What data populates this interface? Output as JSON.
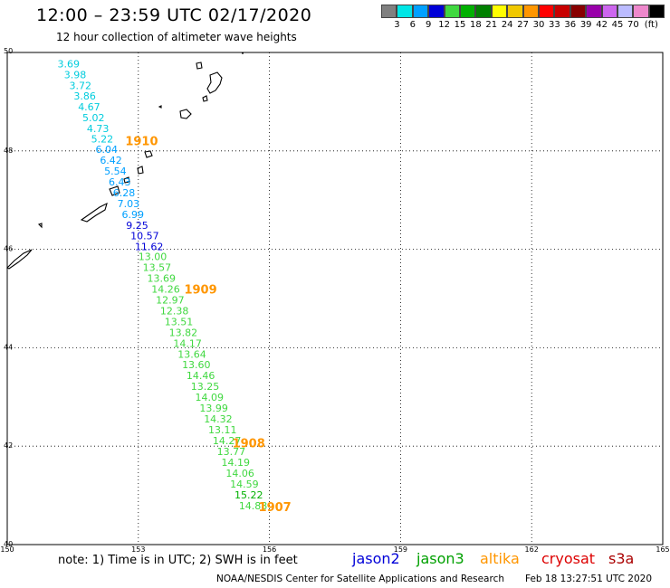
{
  "header": {
    "title": "12:00 – 23:59 UTC 02/17/2020",
    "subtitle": "12 hour collection of altimeter wave heights"
  },
  "colorbar": {
    "swatches": [
      "#808080",
      "#00e6e6",
      "#00a0ff",
      "#0000d8",
      "#40d840",
      "#00b000",
      "#008000",
      "#ffff00",
      "#f0c800",
      "#ff9600",
      "#ff0000",
      "#c80000",
      "#880000",
      "#9900aa",
      "#cc66ee",
      "#bbbbff",
      "#ee88cc",
      "#000000"
    ],
    "labels": [
      "3",
      "6",
      "9",
      "12",
      "15",
      "18",
      "21",
      "24",
      "27",
      "30",
      "33",
      "36",
      "39",
      "42",
      "45",
      "70"
    ],
    "unit": "(ft)"
  },
  "axes": {
    "x_ticks": [
      "150",
      "153",
      "156",
      "159",
      "162",
      "165"
    ],
    "x_values": [
      150,
      153,
      156,
      159,
      162,
      165
    ],
    "y_ticks": [
      "50",
      "48",
      "46",
      "44",
      "42",
      "40"
    ],
    "y_values": [
      50,
      48,
      46,
      44,
      42,
      40
    ]
  },
  "observations": [
    {
      "lon": 151.15,
      "lat": 49.7,
      "text": "3.69",
      "color": "#00ccdd"
    },
    {
      "lon": 151.3,
      "lat": 49.48,
      "text": "3.98",
      "color": "#00ccdd"
    },
    {
      "lon": 151.42,
      "lat": 49.26,
      "text": "3.72",
      "color": "#00ccdd"
    },
    {
      "lon": 151.52,
      "lat": 49.04,
      "text": "3.86",
      "color": "#00ccdd"
    },
    {
      "lon": 151.62,
      "lat": 48.82,
      "text": "4.67",
      "color": "#00ccdd"
    },
    {
      "lon": 151.72,
      "lat": 48.6,
      "text": "5.02",
      "color": "#00ccdd"
    },
    {
      "lon": 151.82,
      "lat": 48.38,
      "text": "4.73",
      "color": "#00ccdd"
    },
    {
      "lon": 151.92,
      "lat": 48.17,
      "text": "5.22",
      "color": "#00ccdd"
    },
    {
      "lon": 152.02,
      "lat": 47.96,
      "text": "6.04",
      "color": "#00a0ff"
    },
    {
      "lon": 152.12,
      "lat": 47.74,
      "text": "6.42",
      "color": "#00a0ff"
    },
    {
      "lon": 152.22,
      "lat": 47.52,
      "text": "5.54",
      "color": "#00a0ff"
    },
    {
      "lon": 152.32,
      "lat": 47.3,
      "text": "6.43",
      "color": "#00a0ff"
    },
    {
      "lon": 152.42,
      "lat": 47.08,
      "text": "6.28",
      "color": "#00a0ff"
    },
    {
      "lon": 152.52,
      "lat": 46.86,
      "text": "7.03",
      "color": "#00a0ff"
    },
    {
      "lon": 152.62,
      "lat": 46.64,
      "text": "6.99",
      "color": "#00a0ff"
    },
    {
      "lon": 152.72,
      "lat": 46.42,
      "text": "9.25",
      "color": "#0000d8"
    },
    {
      "lon": 152.82,
      "lat": 46.2,
      "text": "10.57",
      "color": "#0000d8"
    },
    {
      "lon": 152.92,
      "lat": 45.98,
      "text": "11.62",
      "color": "#0000d8"
    },
    {
      "lon": 153.0,
      "lat": 45.78,
      "text": "13.00",
      "color": "#40d840"
    },
    {
      "lon": 153.1,
      "lat": 45.56,
      "text": "13.57",
      "color": "#40d840"
    },
    {
      "lon": 153.2,
      "lat": 45.34,
      "text": "13.69",
      "color": "#40d840"
    },
    {
      "lon": 153.3,
      "lat": 45.12,
      "text": "14.26",
      "color": "#40d840"
    },
    {
      "lon": 153.4,
      "lat": 44.9,
      "text": "12.97",
      "color": "#40d840"
    },
    {
      "lon": 153.5,
      "lat": 44.68,
      "text": "12.38",
      "color": "#40d840"
    },
    {
      "lon": 153.6,
      "lat": 44.46,
      "text": "13.51",
      "color": "#40d840"
    },
    {
      "lon": 153.7,
      "lat": 44.24,
      "text": "13.82",
      "color": "#40d840"
    },
    {
      "lon": 153.8,
      "lat": 44.02,
      "text": "14.17",
      "color": "#40d840"
    },
    {
      "lon": 153.9,
      "lat": 43.8,
      "text": "13.64",
      "color": "#40d840"
    },
    {
      "lon": 154.0,
      "lat": 43.58,
      "text": "13.60",
      "color": "#40d840"
    },
    {
      "lon": 154.1,
      "lat": 43.36,
      "text": "14.46",
      "color": "#40d840"
    },
    {
      "lon": 154.2,
      "lat": 43.14,
      "text": "13.25",
      "color": "#40d840"
    },
    {
      "lon": 154.3,
      "lat": 42.92,
      "text": "14.09",
      "color": "#40d840"
    },
    {
      "lon": 154.4,
      "lat": 42.7,
      "text": "13.99",
      "color": "#40d840"
    },
    {
      "lon": 154.5,
      "lat": 42.48,
      "text": "14.32",
      "color": "#40d840"
    },
    {
      "lon": 154.6,
      "lat": 42.26,
      "text": "13.11",
      "color": "#40d840"
    },
    {
      "lon": 154.7,
      "lat": 42.04,
      "text": "14.27",
      "color": "#40d840"
    },
    {
      "lon": 154.8,
      "lat": 41.82,
      "text": "13.77",
      "color": "#40d840"
    },
    {
      "lon": 154.9,
      "lat": 41.6,
      "text": "14.19",
      "color": "#40d840"
    },
    {
      "lon": 155.0,
      "lat": 41.38,
      "text": "14.06",
      "color": "#40d840"
    },
    {
      "lon": 155.1,
      "lat": 41.16,
      "text": "14.59",
      "color": "#40d840"
    },
    {
      "lon": 155.2,
      "lat": 40.94,
      "text": "15.22",
      "color": "#00b000"
    },
    {
      "lon": 155.3,
      "lat": 40.72,
      "text": "14.88",
      "color": "#40d840"
    }
  ],
  "time_labels": [
    {
      "lon": 152.7,
      "lat": 48.12,
      "text": "1910",
      "color": "#ff9600"
    },
    {
      "lon": 154.05,
      "lat": 45.1,
      "text": "1909",
      "color": "#ff9600"
    },
    {
      "lon": 155.15,
      "lat": 41.98,
      "text": "1908",
      "color": "#ff9600"
    },
    {
      "lon": 155.75,
      "lat": 40.68,
      "text": "1907",
      "color": "#ff9600"
    }
  ],
  "footer": {
    "note": "note: 1) Time is in UTC; 2) SWH is in feet",
    "satellites": [
      {
        "name": "jason2",
        "color": "#0000d8"
      },
      {
        "name": "jason3",
        "color": "#00a000"
      },
      {
        "name": "altika",
        "color": "#ff9600"
      },
      {
        "name": "cryosat",
        "color": "#dd0000"
      },
      {
        "name": "s3a",
        "color": "#aa0000"
      }
    ],
    "credit": "NOAA/NESDIS Center for Satellite Applications and Research",
    "generated": "Feb 18 13:27:51 UTC 2020"
  }
}
